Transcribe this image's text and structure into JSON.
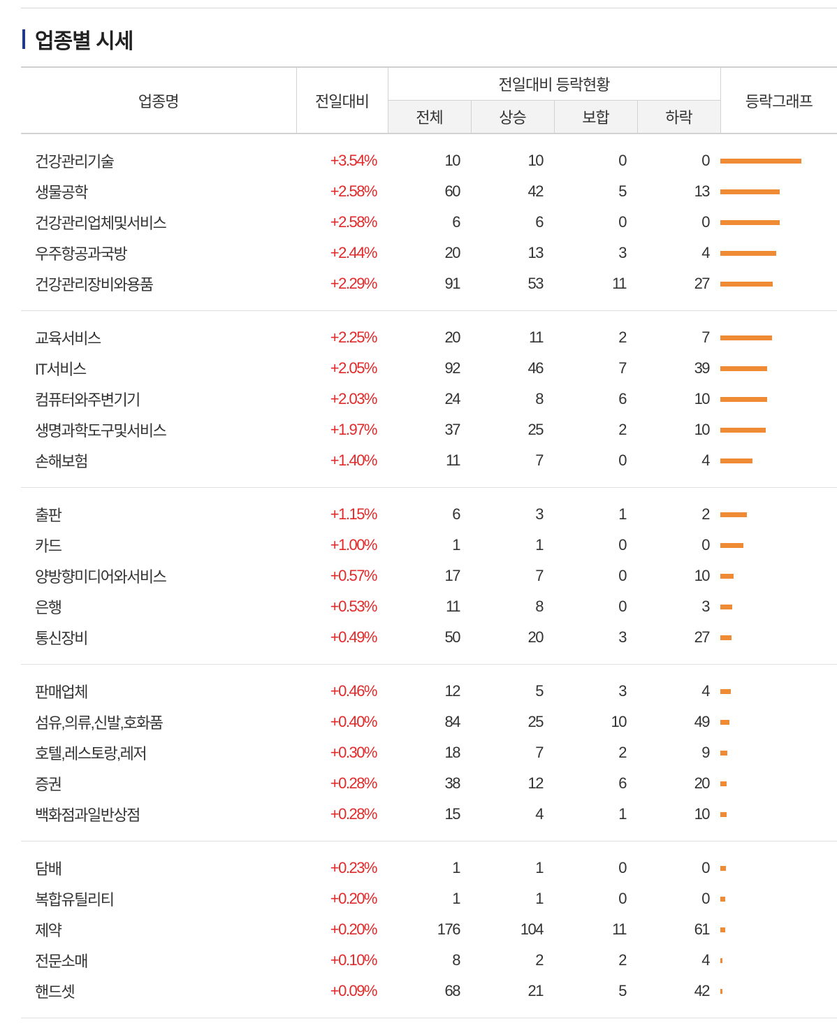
{
  "section": {
    "title": "업종별 시세"
  },
  "table": {
    "headers": {
      "name": "업종명",
      "change": "전일대비",
      "group": "전일대비 등락현황",
      "graph": "등락그래프",
      "total": "전체",
      "up": "상승",
      "flat": "보합",
      "down": "하락"
    },
    "accent_bar_color": "#1f3a8a",
    "positive_color": "#e22a2a",
    "graph_bar_color": "#ef8a35",
    "rows": [
      {
        "name": "건강관리기술",
        "change": "+3.54%",
        "change_value": 3.54,
        "total": "10",
        "up": "10",
        "flat": "0",
        "down": "0"
      },
      {
        "name": "생물공학",
        "change": "+2.58%",
        "change_value": 2.58,
        "total": "60",
        "up": "42",
        "flat": "5",
        "down": "13"
      },
      {
        "name": "건강관리업체및서비스",
        "change": "+2.58%",
        "change_value": 2.58,
        "total": "6",
        "up": "6",
        "flat": "0",
        "down": "0"
      },
      {
        "name": "우주항공과국방",
        "change": "+2.44%",
        "change_value": 2.44,
        "total": "20",
        "up": "13",
        "flat": "3",
        "down": "4"
      },
      {
        "name": "건강관리장비와용품",
        "change": "+2.29%",
        "change_value": 2.29,
        "total": "91",
        "up": "53",
        "flat": "11",
        "down": "27"
      },
      {
        "name": "교육서비스",
        "change": "+2.25%",
        "change_value": 2.25,
        "total": "20",
        "up": "11",
        "flat": "2",
        "down": "7"
      },
      {
        "name": "IT서비스",
        "change": "+2.05%",
        "change_value": 2.05,
        "total": "92",
        "up": "46",
        "flat": "7",
        "down": "39"
      },
      {
        "name": "컴퓨터와주변기기",
        "change": "+2.03%",
        "change_value": 2.03,
        "total": "24",
        "up": "8",
        "flat": "6",
        "down": "10"
      },
      {
        "name": "생명과학도구및서비스",
        "change": "+1.97%",
        "change_value": 1.97,
        "total": "37",
        "up": "25",
        "flat": "2",
        "down": "10"
      },
      {
        "name": "손해보험",
        "change": "+1.40%",
        "change_value": 1.4,
        "total": "11",
        "up": "7",
        "flat": "0",
        "down": "4"
      },
      {
        "name": "출판",
        "change": "+1.15%",
        "change_value": 1.15,
        "total": "6",
        "up": "3",
        "flat": "1",
        "down": "2"
      },
      {
        "name": "카드",
        "change": "+1.00%",
        "change_value": 1.0,
        "total": "1",
        "up": "1",
        "flat": "0",
        "down": "0"
      },
      {
        "name": "양방향미디어와서비스",
        "change": "+0.57%",
        "change_value": 0.57,
        "total": "17",
        "up": "7",
        "flat": "0",
        "down": "10"
      },
      {
        "name": "은행",
        "change": "+0.53%",
        "change_value": 0.53,
        "total": "11",
        "up": "8",
        "flat": "0",
        "down": "3"
      },
      {
        "name": "통신장비",
        "change": "+0.49%",
        "change_value": 0.49,
        "total": "50",
        "up": "20",
        "flat": "3",
        "down": "27"
      },
      {
        "name": "판매업체",
        "change": "+0.46%",
        "change_value": 0.46,
        "total": "12",
        "up": "5",
        "flat": "3",
        "down": "4"
      },
      {
        "name": "섬유,의류,신발,호화품",
        "change": "+0.40%",
        "change_value": 0.4,
        "total": "84",
        "up": "25",
        "flat": "10",
        "down": "49"
      },
      {
        "name": "호텔,레스토랑,레저",
        "change": "+0.30%",
        "change_value": 0.3,
        "total": "18",
        "up": "7",
        "flat": "2",
        "down": "9"
      },
      {
        "name": "증권",
        "change": "+0.28%",
        "change_value": 0.28,
        "total": "38",
        "up": "12",
        "flat": "6",
        "down": "20"
      },
      {
        "name": "백화점과일반상점",
        "change": "+0.28%",
        "change_value": 0.28,
        "total": "15",
        "up": "4",
        "flat": "1",
        "down": "10"
      },
      {
        "name": "담배",
        "change": "+0.23%",
        "change_value": 0.23,
        "total": "1",
        "up": "1",
        "flat": "0",
        "down": "0"
      },
      {
        "name": "복합유틸리티",
        "change": "+0.20%",
        "change_value": 0.2,
        "total": "1",
        "up": "1",
        "flat": "0",
        "down": "0"
      },
      {
        "name": "제약",
        "change": "+0.20%",
        "change_value": 0.2,
        "total": "176",
        "up": "104",
        "flat": "11",
        "down": "61"
      },
      {
        "name": "전문소매",
        "change": "+0.10%",
        "change_value": 0.1,
        "total": "8",
        "up": "2",
        "flat": "2",
        "down": "4"
      },
      {
        "name": "핸드셋",
        "change": "+0.09%",
        "change_value": 0.09,
        "total": "68",
        "up": "21",
        "flat": "5",
        "down": "42"
      }
    ]
  }
}
